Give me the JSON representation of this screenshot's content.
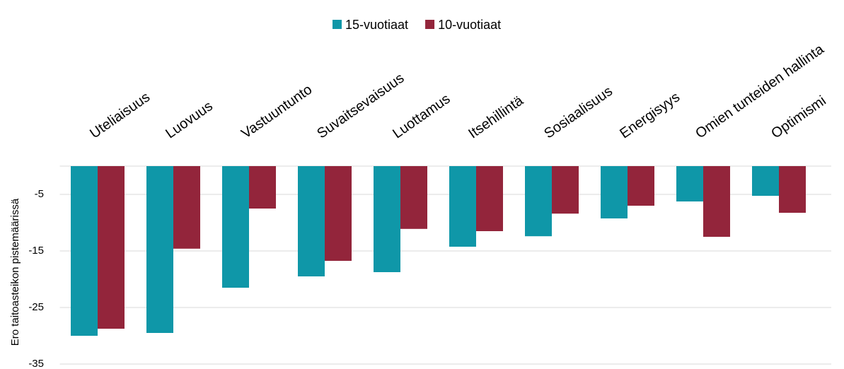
{
  "chart_data": {
    "type": "bar",
    "y_label": "Ero taitoasteikon pistemäärissä",
    "categories": [
      "Uteliaisuus",
      "Luovuus",
      "Vastuuntunto",
      "Suvaitsevaisuus",
      "Luottamus",
      "Itsehillintä",
      "Sosiaalisuus",
      "Energisyys",
      "Omien tunteiden hallinta",
      "Optimismi"
    ],
    "series": [
      {
        "name": "15-vuotiaat",
        "color": "#0f97a8",
        "values": [
          -30,
          -29.5,
          -21.5,
          -19.5,
          -18.75,
          -14.25,
          -12.4,
          -9.25,
          -6.25,
          -5.25
        ]
      },
      {
        "name": "10-vuotiaat",
        "color": "#93253b",
        "values": [
          -28.75,
          -14.6,
          -7.5,
          -16.75,
          -11.1,
          -11.5,
          -8.4,
          -7,
          -12.5,
          -8.25
        ]
      }
    ],
    "ylim": [
      -35,
      0
    ],
    "yticks": [
      -5,
      -15,
      -25,
      -35
    ],
    "grid": true,
    "legend": "top"
  }
}
